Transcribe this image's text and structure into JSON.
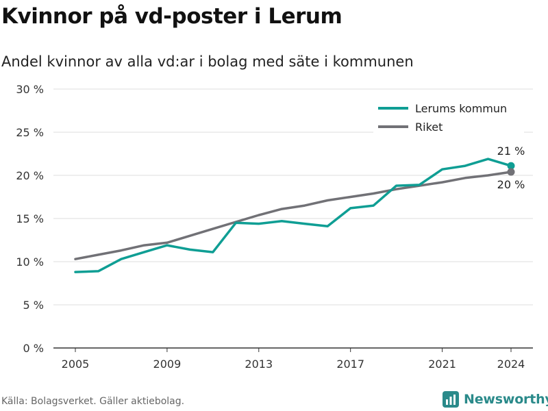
{
  "title": "Kvinnor på vd-poster i Lerum",
  "subtitle": "Andel kvinnor av alla vd:ar i bolag med säte i kommunen",
  "source": "Källa: Bolagsverket. Gäller aktiebolag.",
  "brand": "Newsworthy",
  "colors": {
    "lerum": "#0f9e94",
    "riket": "#717176",
    "grid": "#dddddd",
    "brand": "#2a8a8a"
  },
  "chart_data": {
    "type": "line",
    "title": "Kvinnor på vd-poster i Lerum",
    "subtitle": "Andel kvinnor av alla vd:ar i bolag med säte i kommunen",
    "xlabel": "",
    "ylabel": "",
    "x": [
      2005,
      2006,
      2007,
      2008,
      2009,
      2010,
      2011,
      2012,
      2013,
      2014,
      2015,
      2016,
      2017,
      2018,
      2019,
      2020,
      2021,
      2022,
      2023,
      2024
    ],
    "x_ticks": [
      "2005",
      "2009",
      "2013",
      "2017",
      "2021",
      "2024"
    ],
    "y_ticks": [
      "0 %",
      "5 %",
      "10 %",
      "15 %",
      "20 %",
      "25 %",
      "30 %"
    ],
    "ylim": [
      0,
      30
    ],
    "grid": true,
    "legend_position": "top-right",
    "series": [
      {
        "name": "Lerums kommun",
        "color": "#0f9e94",
        "values": [
          8.8,
          8.9,
          10.3,
          11.1,
          11.9,
          11.4,
          11.1,
          14.5,
          14.4,
          14.7,
          14.4,
          14.1,
          16.2,
          16.5,
          18.8,
          18.9,
          20.7,
          21.1,
          21.9,
          21.1
        ],
        "end_label": "21 %"
      },
      {
        "name": "Riket",
        "color": "#717176",
        "values": [
          10.3,
          10.8,
          11.3,
          11.9,
          12.2,
          13.0,
          13.8,
          14.6,
          15.4,
          16.1,
          16.5,
          17.1,
          17.5,
          17.9,
          18.4,
          18.8,
          19.2,
          19.7,
          20.0,
          20.4
        ],
        "end_label": "20 %"
      }
    ]
  }
}
